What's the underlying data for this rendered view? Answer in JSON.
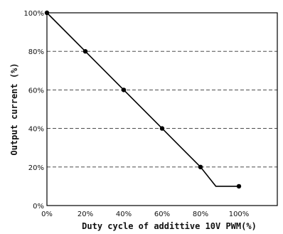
{
  "chart_data": {
    "type": "line",
    "xlabel": "Duty cycle of addittive 10V PWM(%)",
    "ylabel": "Output current (%)",
    "xlim": [
      0,
      120
    ],
    "ylim": [
      0,
      100
    ],
    "x_ticks": [
      "0%",
      "20%",
      "40%",
      "60%",
      "80%",
      "100%"
    ],
    "y_ticks": [
      "0%",
      "20%",
      "40%",
      "60%",
      "80%",
      "100%"
    ],
    "grid": "horizontal dashed",
    "legend": "none",
    "series": [
      {
        "x": [
          0,
          20,
          40,
          60,
          80,
          88,
          100
        ],
        "y": [
          100,
          80,
          60,
          40,
          20,
          10,
          10
        ],
        "markers": [
          true,
          true,
          true,
          true,
          true,
          false,
          true
        ],
        "color": "#000000"
      }
    ]
  }
}
